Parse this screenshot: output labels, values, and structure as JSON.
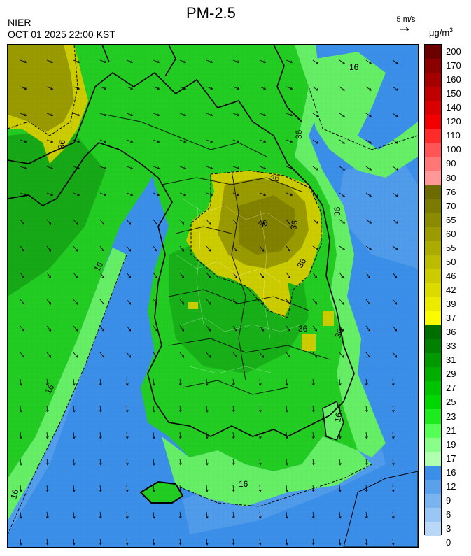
{
  "header": {
    "title": "PM-2.5",
    "agency": "NIER",
    "timestamp": "OCT 01 2025 22:00 KST",
    "wind_reference": "5 m/s",
    "unit_base": "μg/m",
    "unit_exp": "3"
  },
  "colors": {
    "sea_blue": "#3b8fe8",
    "light_blue": "#66aaf0",
    "green_light": "#66ee66",
    "green": "#22cc22",
    "green_dark": "#119911",
    "yellow": "#cccc00",
    "olive": "#999900",
    "olive_dark": "#777700",
    "coast": "#000000"
  },
  "legend": {
    "bins": [
      {
        "label": "200",
        "color": "#6b0000"
      },
      {
        "label": "170",
        "color": "#8b0000"
      },
      {
        "label": "160",
        "color": "#a40000"
      },
      {
        "label": "150",
        "color": "#be0000"
      },
      {
        "label": "140",
        "color": "#d80000"
      },
      {
        "label": "120",
        "color": "#f20000"
      },
      {
        "label": "110",
        "color": "#ff2a2a"
      },
      {
        "label": "100",
        "color": "#ff5555"
      },
      {
        "label": "90",
        "color": "#ff7777"
      },
      {
        "label": "80",
        "color": "#ff9999"
      },
      {
        "label": "76",
        "color": "#6b6b00"
      },
      {
        "label": "70",
        "color": "#7b7b00"
      },
      {
        "label": "65",
        "color": "#8b8b00"
      },
      {
        "label": "60",
        "color": "#9b9b00"
      },
      {
        "label": "55",
        "color": "#abab00"
      },
      {
        "label": "50",
        "color": "#bbbb00"
      },
      {
        "label": "46",
        "color": "#cbcb00"
      },
      {
        "label": "42",
        "color": "#dbdb00"
      },
      {
        "label": "39",
        "color": "#ebeb00"
      },
      {
        "label": "37",
        "color": "#fbfb00"
      },
      {
        "label": "36",
        "color": "#006d00"
      },
      {
        "label": "33",
        "color": "#008200"
      },
      {
        "label": "31",
        "color": "#009a00"
      },
      {
        "label": "29",
        "color": "#00ae00"
      },
      {
        "label": "27",
        "color": "#00c300"
      },
      {
        "label": "25",
        "color": "#00d700"
      },
      {
        "label": "23",
        "color": "#1eeb1e"
      },
      {
        "label": "21",
        "color": "#55ff55"
      },
      {
        "label": "19",
        "color": "#88ff88"
      },
      {
        "label": "17",
        "color": "#afffaf"
      },
      {
        "label": "16",
        "color": "#3b8fe8"
      },
      {
        "label": "12",
        "color": "#5aa1ec"
      },
      {
        "label": "9",
        "color": "#79b4f0"
      },
      {
        "label": "6",
        "color": "#99c6f4"
      },
      {
        "label": "3",
        "color": "#b9d8f8"
      },
      {
        "label": "0",
        "color": ""
      }
    ]
  },
  "contour_labels": [
    "16",
    "16",
    "16",
    "16",
    "16",
    "16",
    "36",
    "36",
    "36",
    "36",
    "36",
    "36",
    "36",
    "36",
    "36"
  ]
}
